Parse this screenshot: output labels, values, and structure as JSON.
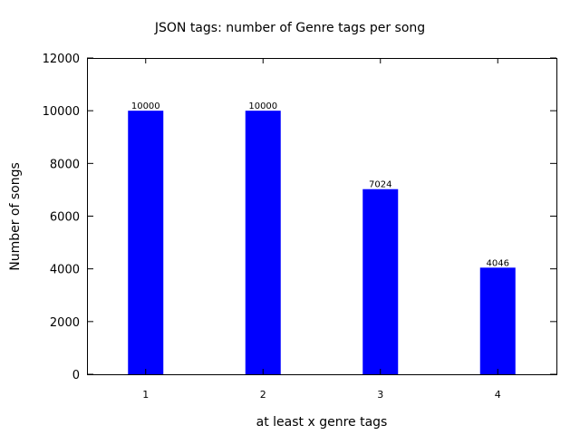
{
  "chart_data": {
    "type": "bar",
    "title": "JSON tags: number of Genre tags per song",
    "xlabel": "at least x genre tags",
    "ylabel": "Number of songs",
    "categories": [
      "1",
      "2",
      "3",
      "4"
    ],
    "values": [
      10000,
      10000,
      7024,
      4046
    ],
    "data_labels": [
      "10000",
      "10000",
      "7024",
      "4046"
    ],
    "yticks": [
      0,
      2000,
      4000,
      6000,
      8000,
      10000,
      12000
    ],
    "ylim": [
      0,
      12000
    ],
    "bar_color": "#0000ff",
    "grid": false,
    "legend": "none"
  }
}
